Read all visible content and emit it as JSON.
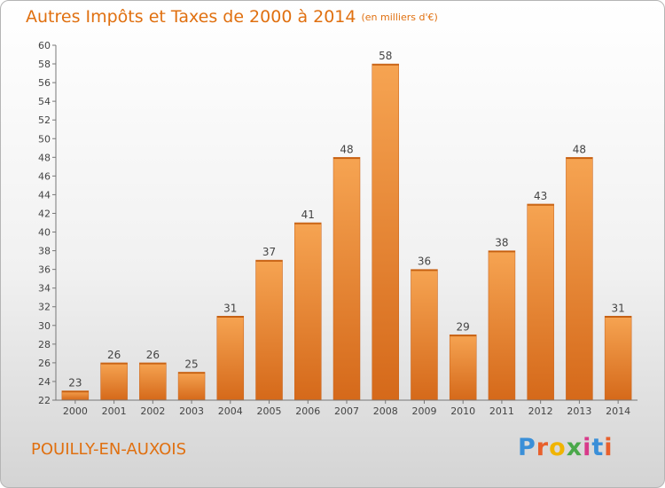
{
  "header": {
    "title": "Autres Impôts et Taxes de 2000 à 2014",
    "subtitle": "(en milliers d'€)"
  },
  "footer": {
    "commune": "POUILLY-EN-AUXOIS",
    "logo_text": "Proxiti",
    "logo_colors": [
      "#3a8fd8",
      "#e8602c",
      "#f0b400",
      "#4aa84a",
      "#d83a8a",
      "#3a8fd8",
      "#e8602c"
    ]
  },
  "chart_data": {
    "type": "bar",
    "categories": [
      "2000",
      "2001",
      "2002",
      "2003",
      "2004",
      "2005",
      "2006",
      "2007",
      "2008",
      "2009",
      "2010",
      "2011",
      "2012",
      "2013",
      "2014"
    ],
    "values": [
      23,
      26,
      26,
      25,
      31,
      37,
      41,
      48,
      58,
      36,
      29,
      38,
      43,
      48,
      31
    ],
    "ylim": [
      22,
      60
    ],
    "ytick_step": 2,
    "grid": false,
    "bar_color": "#f08a2a"
  }
}
